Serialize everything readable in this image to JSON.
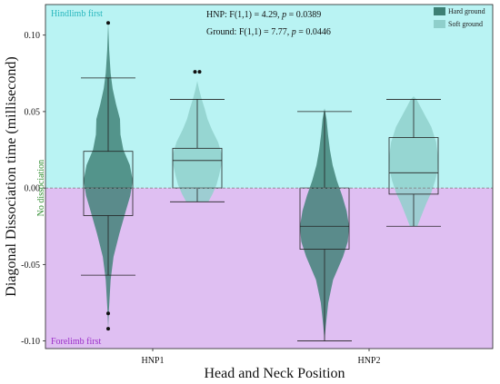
{
  "chart_data": {
    "type": "violin-box",
    "xlabel": "Head and Neck Position",
    "ylabel": "Diagonal Dissociation time (millisecond)",
    "categories": [
      "HNP1",
      "HNP2"
    ],
    "ylim": [
      -0.105,
      0.12
    ],
    "yticks": [
      {
        "value": 0.1,
        "label": "0.10"
      },
      {
        "value": 0.05,
        "label": "0.05"
      },
      {
        "value": 0.0,
        "label": "0.00"
      },
      {
        "value": -0.05,
        "label": "-0.05"
      },
      {
        "value": -0.1,
        "label": "-0.10"
      }
    ],
    "reference_line": {
      "value": 0,
      "label": "No dissociation",
      "color": "#2e8b2e"
    },
    "regions": [
      {
        "name": "hindlimb",
        "label": "Hindlimb first",
        "from": 0,
        "to": 0.12,
        "color": "#b9f3f3",
        "label_color": "#2ab7be"
      },
      {
        "name": "forelimb",
        "label": "Forelimb first",
        "from": -0.105,
        "to": 0,
        "color": "#dfbff2",
        "label_color": "#9b2fc9"
      }
    ],
    "annotations": [
      {
        "name": "hnp-stat",
        "prefix": "HNP: F(1,1) = 4.29, ",
        "p_label": "p",
        "suffix": " = 0.0389"
      },
      {
        "name": "ground-stat",
        "prefix": "Ground: F(1,1) = 7.77, ",
        "p_label": "p",
        "suffix": " = 0.0446"
      }
    ],
    "legend": {
      "position": "top-right",
      "entries": [
        {
          "name": "Hard ground",
          "color": "#3d7f74"
        },
        {
          "name": "Soft ground",
          "color": "#8fcfcb"
        }
      ]
    },
    "series": [
      {
        "name": "Hard ground",
        "category": "HNP1",
        "color": "#3d7f74",
        "box": {
          "whisker_low": -0.057,
          "q1": -0.018,
          "median": 0.0,
          "q3": 0.024,
          "whisker_high": 0.072
        },
        "outliers": [
          0.108,
          -0.082,
          -0.092
        ],
        "density": [
          [
            -0.092,
            0.0
          ],
          [
            -0.08,
            0.03
          ],
          [
            -0.06,
            0.1
          ],
          [
            -0.045,
            0.22
          ],
          [
            -0.03,
            0.45
          ],
          [
            -0.015,
            0.72
          ],
          [
            -0.005,
            0.9
          ],
          [
            0.005,
            1.0
          ],
          [
            0.015,
            0.88
          ],
          [
            0.025,
            0.62
          ],
          [
            0.035,
            0.5
          ],
          [
            0.045,
            0.48
          ],
          [
            0.055,
            0.32
          ],
          [
            0.065,
            0.18
          ],
          [
            0.075,
            0.1
          ],
          [
            0.09,
            0.04
          ],
          [
            0.108,
            0.0
          ]
        ]
      },
      {
        "name": "Soft ground",
        "category": "HNP1",
        "color": "#8fcfcb",
        "box": {
          "whisker_low": -0.009,
          "q1": 0.0,
          "median": 0.018,
          "q3": 0.026,
          "whisker_high": 0.058
        },
        "outliers": [
          0.076,
          0.076
        ],
        "density": [
          [
            -0.009,
            0.45
          ],
          [
            -0.004,
            0.62
          ],
          [
            0.002,
            0.78
          ],
          [
            0.008,
            0.88
          ],
          [
            0.015,
            0.98
          ],
          [
            0.022,
            1.0
          ],
          [
            0.03,
            0.85
          ],
          [
            0.038,
            0.6
          ],
          [
            0.045,
            0.42
          ],
          [
            0.052,
            0.3
          ],
          [
            0.058,
            0.18
          ],
          [
            0.064,
            0.08
          ],
          [
            0.07,
            0.0
          ]
        ]
      },
      {
        "name": "Hard ground",
        "category": "HNP2",
        "color": "#3d7f74",
        "box": {
          "whisker_low": -0.1,
          "q1": -0.04,
          "median": -0.025,
          "q3": 0.0,
          "whisker_high": 0.05
        },
        "outliers": [],
        "density": [
          [
            -0.1,
            0.0
          ],
          [
            -0.09,
            0.05
          ],
          [
            -0.075,
            0.15
          ],
          [
            -0.06,
            0.35
          ],
          [
            -0.045,
            0.75
          ],
          [
            -0.035,
            0.95
          ],
          [
            -0.025,
            1.0
          ],
          [
            -0.015,
            0.9
          ],
          [
            -0.005,
            0.72
          ],
          [
            0.005,
            0.5
          ],
          [
            0.015,
            0.33
          ],
          [
            0.025,
            0.22
          ],
          [
            0.035,
            0.14
          ],
          [
            0.045,
            0.08
          ],
          [
            0.052,
            0.0
          ]
        ]
      },
      {
        "name": "Soft ground",
        "category": "HNP2",
        "color": "#8fcfcb",
        "box": {
          "whisker_low": -0.025,
          "q1": -0.004,
          "median": 0.01,
          "q3": 0.033,
          "whisker_high": 0.058
        },
        "outliers": [],
        "density": [
          [
            -0.025,
            0.15
          ],
          [
            -0.018,
            0.32
          ],
          [
            -0.01,
            0.52
          ],
          [
            -0.003,
            0.72
          ],
          [
            0.005,
            0.88
          ],
          [
            0.012,
            0.98
          ],
          [
            0.02,
            1.0
          ],
          [
            0.03,
            0.92
          ],
          [
            0.04,
            0.72
          ],
          [
            0.048,
            0.45
          ],
          [
            0.054,
            0.25
          ],
          [
            0.058,
            0.12
          ],
          [
            0.06,
            0.0
          ]
        ]
      }
    ]
  }
}
